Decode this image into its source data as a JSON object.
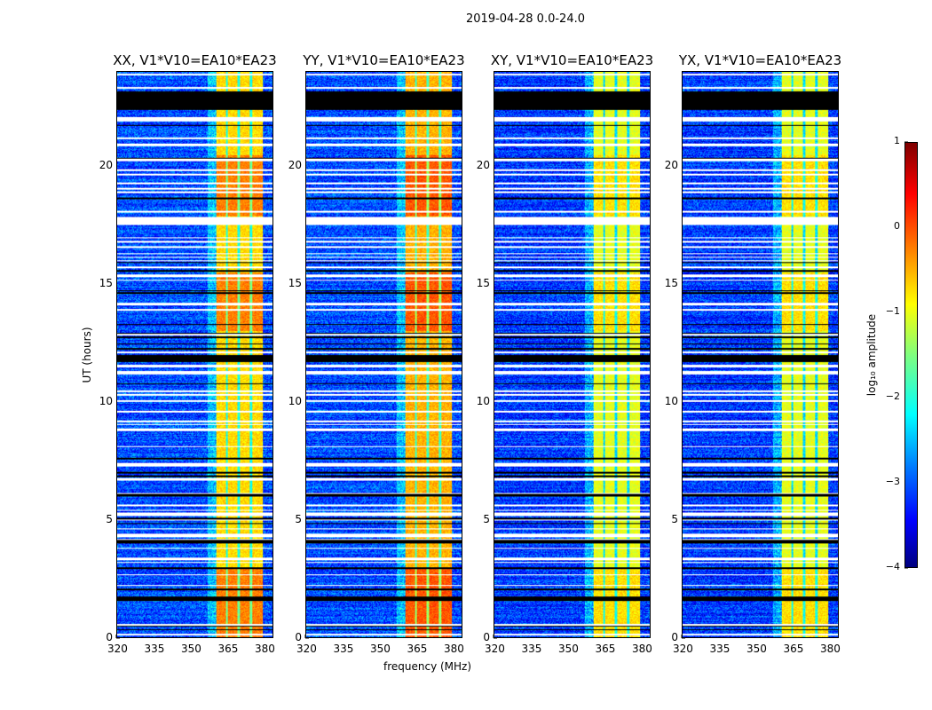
{
  "chart_data": {
    "type": "heatmap",
    "title": "2019-04-28 0.0-24.0",
    "xlabel": "frequency (MHz)",
    "ylabel": "UT (hours)",
    "xlim": [
      320,
      384
    ],
    "ylim": [
      0,
      24
    ],
    "xticks": [
      "320",
      "335",
      "350",
      "365",
      "380"
    ],
    "yticks": [
      "0",
      "5",
      "10",
      "15",
      "20"
    ],
    "panels": [
      {
        "title": "XX, V1*V10=EA10*EA23",
        "band_level": -0.7,
        "background_level": -3.0
      },
      {
        "title": "YY, V1*V10=EA10*EA23",
        "band_level": -0.5,
        "background_level": -3.0
      },
      {
        "title": "XY, V1*V10=EA10*EA23",
        "band_level": -1.0,
        "background_level": -3.1
      },
      {
        "title": "YX, V1*V10=EA10*EA23",
        "band_level": -1.0,
        "background_level": -3.1
      }
    ],
    "band_mhz": [
      360.5,
      380
    ],
    "band_dark_channels_mhz": [
      365,
      370,
      375
    ],
    "flagged_black_hours": [
      [
        22.4,
        23.2
      ],
      [
        11.75,
        12.0
      ],
      [
        1.55,
        1.75
      ],
      [
        4.0,
        4.15
      ],
      [
        5.0,
        5.1
      ],
      [
        6.0,
        6.1
      ],
      [
        6.8,
        6.9
      ],
      [
        7.55,
        7.65
      ],
      [
        2.9,
        3.0
      ],
      [
        2.0,
        2.1
      ],
      [
        12.7,
        12.8
      ],
      [
        18.6,
        18.7
      ]
    ],
    "flagged_white_hours": [
      [
        17.6,
        17.85
      ],
      [
        4.25,
        4.4
      ],
      [
        5.15,
        5.3
      ],
      [
        21.9,
        22.1
      ],
      [
        11.5,
        11.6
      ],
      [
        3.3,
        3.4
      ],
      [
        15.3,
        15.4
      ],
      [
        14.1,
        14.2
      ]
    ],
    "colorbar": {
      "label": "log₁₀ amplitude",
      "ticks": [
        "1",
        "0",
        "−1",
        "−2",
        "−3",
        "−4"
      ],
      "range": [
        -4,
        1
      ]
    }
  }
}
